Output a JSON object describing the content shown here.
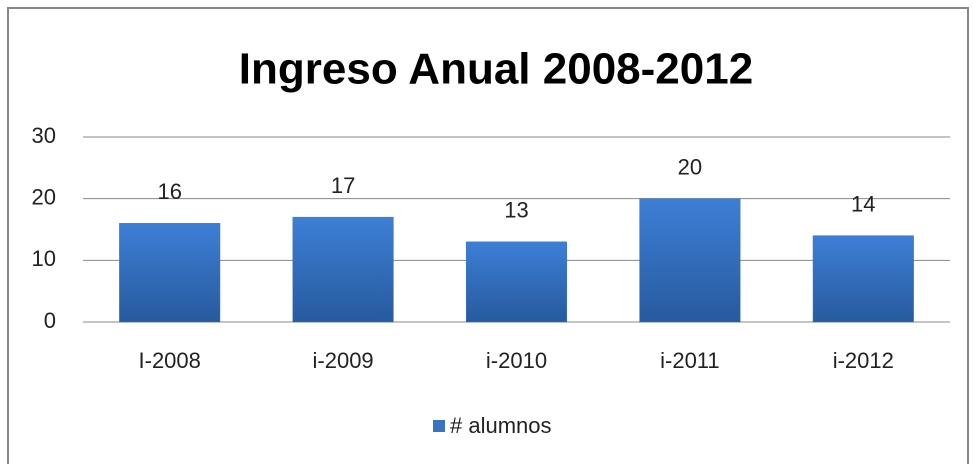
{
  "chart_data": {
    "type": "bar",
    "title": "Ingreso Anual 2008-2012",
    "categories": [
      "I-2008",
      "i-2009",
      "i-2010",
      "i-2011",
      "i-2012"
    ],
    "series": [
      {
        "name": "# alumnos",
        "color": "#3a73c4",
        "values": [
          16,
          17,
          13,
          20,
          14
        ]
      }
    ],
    "ylim": [
      0,
      30
    ],
    "yticks": [
      0,
      10,
      20,
      30
    ],
    "grid": true,
    "legend": "bottom"
  }
}
